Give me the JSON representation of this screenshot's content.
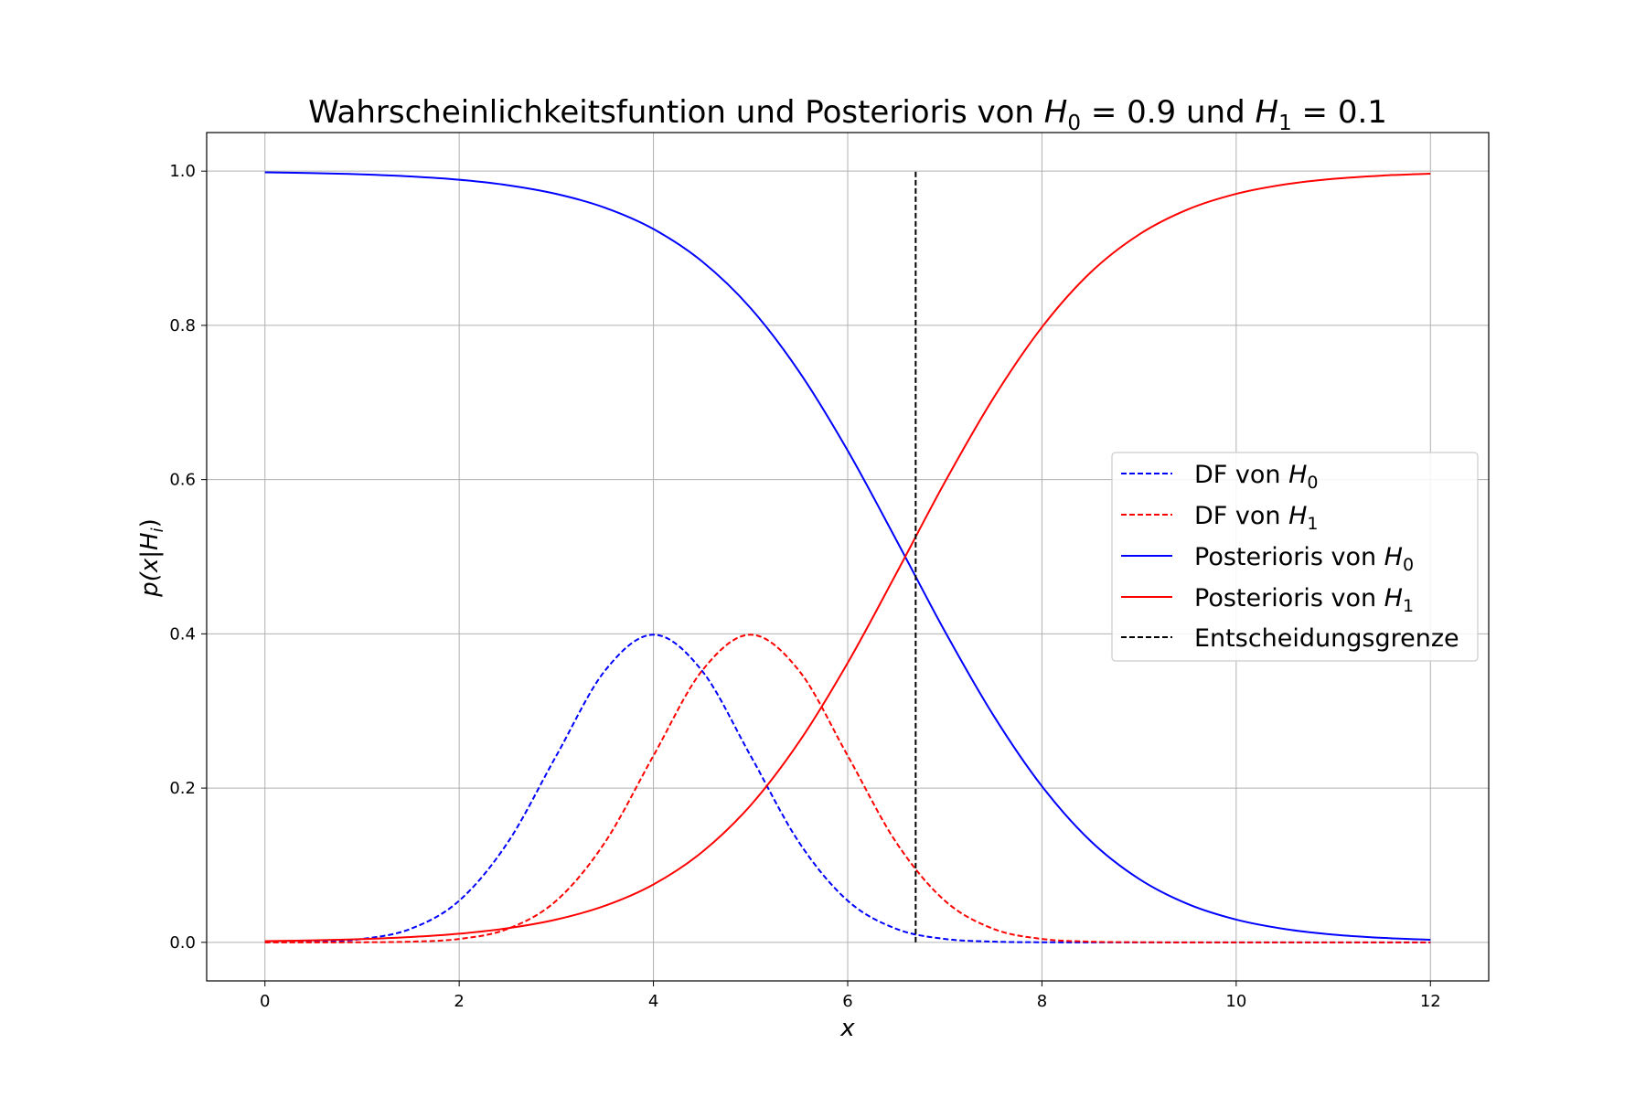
{
  "chart_data": {
    "type": "line",
    "title": {
      "prefix": "Wahrscheinlichkeitsfuntion und Posterioris von ",
      "h0": "H",
      "h0_sub": "0",
      "eq0": " = 0.9",
      "mid": " und ",
      "h1": "H",
      "h1_sub": "1",
      "eq1": " = 0.1"
    },
    "xlabel": "x",
    "ylabel": "p(x|H",
    "ylabel_sub": "i",
    "ylabel_end": ")",
    "xlim": [
      -0.6,
      12.6
    ],
    "ylim": [
      -0.05,
      1.05
    ],
    "xticks": [
      0,
      2,
      4,
      6,
      8,
      10,
      12
    ],
    "xtick_labels": [
      "0",
      "2",
      "4",
      "6",
      "8",
      "10",
      "12"
    ],
    "yticks": [
      0.0,
      0.2,
      0.4,
      0.6,
      0.8,
      1.0
    ],
    "ytick_labels": [
      "0.0",
      "0.2",
      "0.4",
      "0.6",
      "0.8",
      "1.0"
    ],
    "grid": true,
    "legend_position": "center-right",
    "x": [
      0,
      0.5,
      1,
      1.5,
      2,
      2.5,
      3,
      3.5,
      4,
      4.5,
      5,
      5.5,
      6,
      6.5,
      7,
      7.5,
      8,
      8.5,
      9,
      9.5,
      10,
      10.5,
      11,
      11.5,
      12
    ],
    "series": [
      {
        "name": "DF von ",
        "name_h": "H",
        "name_sub": "0",
        "color": "#0000ff",
        "dash": true,
        "values": [
          0.0001,
          0.0009,
          0.0044,
          0.0175,
          0.054,
          0.1295,
          0.242,
          0.3521,
          0.3989,
          0.3521,
          0.242,
          0.1295,
          0.054,
          0.0175,
          0.0044,
          0.0009,
          0.0001,
          0.0,
          0.0,
          0.0,
          0.0,
          0.0,
          0.0,
          0.0,
          0.0
        ]
      },
      {
        "name": "DF von ",
        "name_h": "H",
        "name_sub": "1",
        "color": "#ff0000",
        "dash": true,
        "values": [
          0.0,
          0.0,
          0.0001,
          0.0009,
          0.0044,
          0.0175,
          0.054,
          0.1295,
          0.242,
          0.3521,
          0.3989,
          0.3521,
          0.242,
          0.1295,
          0.054,
          0.0175,
          0.0044,
          0.0009,
          0.0001,
          0.0,
          0.0,
          0.0,
          0.0,
          0.0,
          0.0
        ]
      },
      {
        "name": "Posterioris von ",
        "name_h": "H",
        "name_sub": "0",
        "color": "#0000ff",
        "dash": false,
        "values": [
          0.9984,
          0.9974,
          0.9958,
          0.9931,
          0.9888,
          0.9817,
          0.9704,
          0.9526,
          0.9249,
          0.883,
          0.8224,
          0.74,
          0.6377,
          0.5218,
          0.4034,
          0.2944,
          0.2024,
          0.1315,
          0.0822,
          0.0498,
          0.0295,
          0.0173,
          0.01,
          0.0058,
          0.0033
        ]
      },
      {
        "name": "Posterioris von ",
        "name_h": "H",
        "name_sub": "1",
        "color": "#ff0000",
        "dash": false,
        "values": [
          0.0016,
          0.0026,
          0.0042,
          0.0069,
          0.0112,
          0.0183,
          0.0296,
          0.0474,
          0.0751,
          0.117,
          0.1776,
          0.26,
          0.3623,
          0.4782,
          0.5966,
          0.7056,
          0.7976,
          0.8685,
          0.9178,
          0.9502,
          0.9705,
          0.9827,
          0.99,
          0.9942,
          0.9967
        ]
      }
    ],
    "decision_boundary": {
      "name": "Entscheidungsgrenze",
      "x": 6.7,
      "y_range": [
        0.0,
        1.0
      ],
      "color": "#000000"
    }
  }
}
